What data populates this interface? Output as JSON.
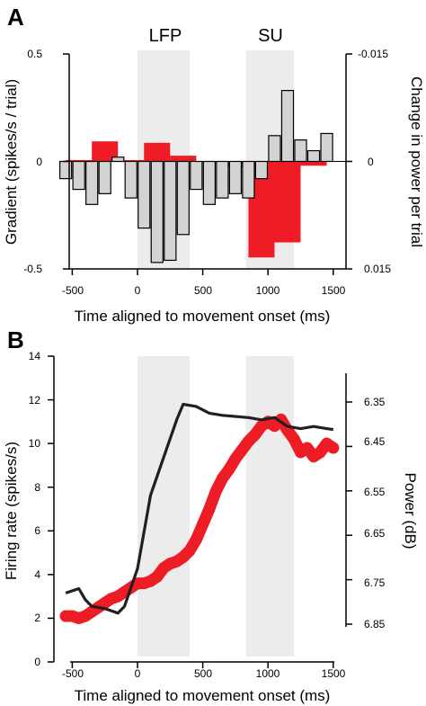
{
  "chart_data": [
    {
      "panel": "A",
      "type": "bar",
      "regions": [
        {
          "label": "LFP",
          "x_range": [
            0,
            400
          ]
        },
        {
          "label": "SU",
          "x_range": [
            830,
            1200
          ]
        }
      ],
      "xlabel": "Time aligned to movement onset (ms)",
      "ylabel": "Gradient (spikes/s / trial)",
      "y2label": "Change in power per trial",
      "xlim": [
        -600,
        1500
      ],
      "ylim": [
        -0.5,
        0.5
      ],
      "y2lim": [
        0.015,
        -0.015
      ],
      "xticks": [
        "-500",
        "0",
        "500",
        "1000",
        "1500"
      ],
      "yticks": [
        "0.5",
        "0",
        "-0.5"
      ],
      "y2ticks": [
        "-0.015",
        "0",
        "0.015"
      ],
      "series": [
        {
          "color": "#ee1c24",
          "axis": "right",
          "x": [
            -450,
            -250,
            -50,
            150,
            350,
            550,
            750,
            950,
            1150,
            1350
          ],
          "values": [
            -0.0002,
            -0.0028,
            -0.0002,
            -0.0026,
            -0.0008,
            0.0001,
            0.0008,
            0.0134,
            0.0113,
            0.0006
          ]
        },
        {
          "color": "#d3d3d3",
          "axis": "left",
          "x": [
            -550,
            -450,
            -350,
            -250,
            -150,
            -50,
            50,
            150,
            250,
            350,
            450,
            550,
            650,
            750,
            850,
            950,
            1050,
            1150,
            1250,
            1350,
            1450
          ],
          "values": [
            -0.08,
            -0.13,
            -0.2,
            -0.15,
            0.02,
            -0.17,
            -0.31,
            -0.47,
            -0.46,
            -0.34,
            -0.13,
            -0.2,
            -0.17,
            -0.15,
            -0.17,
            -0.08,
            0.12,
            0.33,
            0.1,
            0.05,
            0.13
          ]
        }
      ]
    },
    {
      "panel": "B",
      "type": "line",
      "regions": [
        {
          "x_range": [
            0,
            400
          ]
        },
        {
          "x_range": [
            830,
            1200
          ]
        }
      ],
      "xlabel": "Time aligned to movement onset (ms)",
      "ylabel": "Firing rate (spikes/s)",
      "y2label": "Power (dB)",
      "xlim": [
        -600,
        1500
      ],
      "ylim": [
        0,
        14
      ],
      "y2lim": [
        6.85,
        6.35
      ],
      "xticks": [
        "-500",
        "0",
        "500",
        "1000",
        "1500"
      ],
      "yticks": [
        "0",
        "2",
        "4",
        "6",
        "8",
        "10",
        "12",
        "14"
      ],
      "y2ticks": [
        "6.35",
        "6.45",
        "6.55",
        "6.65",
        "6.75",
        "6.85"
      ],
      "series": [
        {
          "color": "#ee1c24",
          "axis": "left",
          "x": [
            -550,
            -500,
            -450,
            -400,
            -350,
            -300,
            -250,
            -200,
            -150,
            -100,
            -50,
            0,
            50,
            100,
            150,
            200,
            250,
            300,
            350,
            400,
            450,
            500,
            550,
            600,
            650,
            700,
            750,
            800,
            850,
            900,
            950,
            1000,
            1050,
            1100,
            1150,
            1200,
            1250,
            1300,
            1350,
            1400,
            1450,
            1500
          ],
          "values": [
            2.1,
            2.1,
            2.0,
            2.1,
            2.3,
            2.5,
            2.7,
            2.9,
            3.0,
            3.2,
            3.4,
            3.6,
            3.6,
            3.7,
            3.9,
            4.3,
            4.5,
            4.6,
            4.8,
            5.1,
            5.6,
            6.3,
            7.0,
            7.8,
            8.4,
            8.8,
            9.3,
            9.7,
            10.1,
            10.4,
            10.8,
            11.0,
            10.8,
            11.1,
            10.6,
            10.2,
            9.6,
            9.8,
            9.4,
            9.6,
            10.0,
            9.8
          ]
        },
        {
          "color": "#231f20",
          "axis": "right",
          "x": [
            -550,
            -450,
            -400,
            -350,
            -250,
            -150,
            -100,
            0,
            100,
            200,
            300,
            350,
            450,
            550,
            650,
            850,
            950,
            1050,
            1150,
            1250,
            1350,
            1450,
            1500
          ],
          "values": [
            6.78,
            6.77,
            6.795,
            6.81,
            6.815,
            6.825,
            6.81,
            6.725,
            6.56,
            6.475,
            6.39,
            6.355,
            6.36,
            6.375,
            6.38,
            6.385,
            6.39,
            6.385,
            6.405,
            6.41,
            6.405,
            6.41,
            6.412
          ]
        }
      ]
    }
  ]
}
